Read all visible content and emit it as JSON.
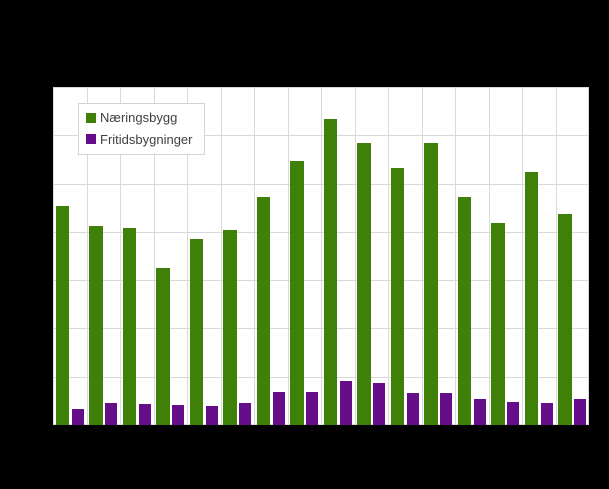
{
  "window": {
    "canvas_background": "#000000"
  },
  "legend": {
    "position": "top-left-inside",
    "items": [
      {
        "label": "Næringsbygg",
        "color": "#3e8008"
      },
      {
        "label": "Fritidsbygninger",
        "color": "#660e8a"
      }
    ]
  },
  "chart_data": {
    "type": "bar",
    "title": "",
    "xlabel": "",
    "ylabel": "",
    "category_count": 16,
    "axis_labels_visible": false,
    "series": [
      {
        "name": "Næringsbygg",
        "color": "#3e8008",
        "values": [
          45.4,
          41.3,
          40.9,
          32.6,
          38.5,
          40.3,
          47.3,
          54.7,
          63.4,
          58.5,
          53.2,
          58.5,
          47.2,
          41.8,
          52.4,
          43.7
        ]
      },
      {
        "name": "Fritidsbygninger",
        "color": "#660e8a",
        "values": [
          3.3,
          4.6,
          4.3,
          4.1,
          3.9,
          4.5,
          6.9,
          6.9,
          9.1,
          8.6,
          6.7,
          6.6,
          5.3,
          4.8,
          4.5,
          5.3
        ]
      }
    ],
    "ylim": [
      0,
      70
    ],
    "ytick_interval": 10,
    "grid": true,
    "grid_color": "#d9d9d9",
    "plot_background": "#ffffff",
    "legend_position": "top-left-inside"
  }
}
